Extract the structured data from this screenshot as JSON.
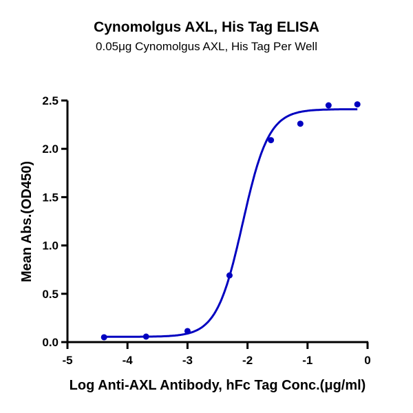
{
  "chart_data": {
    "type": "scatter",
    "title": "Cynomolgus AXL, His Tag ELISA",
    "subtitle": "0.05μg Cynomolgus AXL, His Tag Per Well",
    "xlabel": "Log Anti-AXL Antibody, hFc Tag Conc.(μg/ml)",
    "ylabel": "Mean Abs.(OD450)",
    "xlim": [
      -5,
      0
    ],
    "ylim": [
      0,
      2.5
    ],
    "xticks": [
      "-5",
      "-4",
      "-3",
      "-2",
      "-1",
      "0"
    ],
    "yticks": [
      "0.0",
      "0.5",
      "1.0",
      "1.5",
      "2.0",
      "2.5"
    ],
    "grid": false,
    "legend": null,
    "series": [
      {
        "name": "Mean Abs.(OD450)",
        "color": "#0000C0",
        "x": [
          -4.39,
          -3.69,
          -3.0,
          -2.3,
          -1.61,
          -1.12,
          -0.65,
          -0.17
        ],
        "y": [
          0.05,
          0.057,
          0.114,
          0.69,
          2.09,
          2.26,
          2.45,
          2.46
        ]
      }
    ],
    "fit": {
      "model": "4PL sigmoidal",
      "bottom": 0.055,
      "top": 2.41,
      "log_ec50": -2.08,
      "hill": 2.0,
      "color": "#0000C0"
    }
  }
}
